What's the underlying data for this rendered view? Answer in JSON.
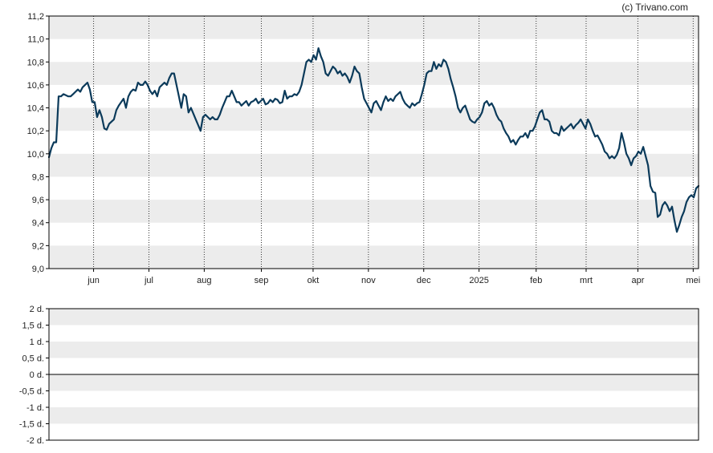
{
  "credit": "(c) Trivano.com",
  "chart_data": [
    {
      "type": "line",
      "title": "",
      "xlabel": "",
      "ylabel": "",
      "ylim": [
        9.0,
        11.2
      ],
      "y_ticks": [
        "9,0",
        "9,2",
        "9,4",
        "9,6",
        "9,8",
        "10,0",
        "10,2",
        "10,4",
        "10,6",
        "10,8",
        "11,0",
        "11,2"
      ],
      "x_ticks": [
        "jun",
        "jul",
        "aug",
        "sep",
        "okt",
        "nov",
        "dec",
        "2025",
        "feb",
        "mrt",
        "apr",
        "mei"
      ],
      "grid": "alternating horizontal bands, dotted vertical lines",
      "line_color": "#0b3a5a",
      "series": [
        {
          "x_start": "2024-05-06",
          "x_end": "2025-05-05",
          "values": [
            9.97,
            10.05,
            10.1,
            10.1,
            10.5,
            10.5,
            10.52,
            10.51,
            10.5,
            10.5,
            10.52,
            10.54,
            10.56,
            10.54,
            10.58,
            10.6,
            10.62,
            10.56,
            10.45,
            10.45,
            10.32,
            10.38,
            10.32,
            10.22,
            10.21,
            10.26,
            10.28,
            10.3,
            10.38,
            10.42,
            10.45,
            10.48,
            10.4,
            10.5,
            10.54,
            10.56,
            10.55,
            10.62,
            10.6,
            10.6,
            10.63,
            10.6,
            10.55,
            10.52,
            10.55,
            10.5,
            10.58,
            10.6,
            10.62,
            10.6,
            10.66,
            10.7,
            10.7,
            10.6,
            10.5,
            10.4,
            10.52,
            10.5,
            10.36,
            10.4,
            10.35,
            10.3,
            10.25,
            10.2,
            10.32,
            10.34,
            10.32,
            10.3,
            10.32,
            10.3,
            10.3,
            10.34,
            10.4,
            10.45,
            10.5,
            10.5,
            10.55,
            10.5,
            10.45,
            10.45,
            10.42,
            10.44,
            10.46,
            10.42,
            10.45,
            10.46,
            10.48,
            10.44,
            10.46,
            10.48,
            10.43,
            10.44,
            10.47,
            10.45,
            10.48,
            10.47,
            10.44,
            10.45,
            10.55,
            10.48,
            10.5,
            10.5,
            10.52,
            10.51,
            10.54,
            10.6,
            10.7,
            10.8,
            10.82,
            10.8,
            10.86,
            10.82,
            10.92,
            10.85,
            10.8,
            10.7,
            10.68,
            10.72,
            10.76,
            10.74,
            10.7,
            10.72,
            10.68,
            10.7,
            10.67,
            10.62,
            10.68,
            10.76,
            10.72,
            10.7,
            10.58,
            10.48,
            10.44,
            10.4,
            10.36,
            10.44,
            10.46,
            10.42,
            10.38,
            10.45,
            10.5,
            10.46,
            10.48,
            10.46,
            10.5,
            10.52,
            10.54,
            10.48,
            10.44,
            10.42,
            10.4,
            10.44,
            10.42,
            10.44,
            10.45,
            10.52,
            10.6,
            10.7,
            10.72,
            10.72,
            10.8,
            10.74,
            10.78,
            10.76,
            10.82,
            10.8,
            10.74,
            10.65,
            10.58,
            10.5,
            10.4,
            10.36,
            10.4,
            10.42,
            10.36,
            10.3,
            10.28,
            10.27,
            10.3,
            10.32,
            10.36,
            10.44,
            10.46,
            10.42,
            10.44,
            10.4,
            10.34,
            10.3,
            10.28,
            10.22,
            10.18,
            10.15,
            10.1,
            10.12,
            10.08,
            10.12,
            10.15,
            10.15,
            10.18,
            10.14,
            10.2,
            10.2,
            10.24,
            10.3,
            10.36,
            10.38,
            10.3,
            10.3,
            10.28,
            10.2,
            10.18,
            10.18,
            10.16,
            10.24,
            10.2,
            10.22,
            10.24,
            10.26,
            10.22,
            10.25,
            10.27,
            10.3,
            10.26,
            10.22,
            10.3,
            10.26,
            10.2,
            10.15,
            10.16,
            10.12,
            10.08,
            10.02,
            10.0,
            9.96,
            9.98,
            9.96,
            9.99,
            10.05,
            10.18,
            10.1,
            10.0,
            9.96,
            9.9,
            9.96,
            9.98,
            10.02,
            10.0,
            10.06,
            9.98,
            9.9,
            9.72,
            9.67,
            9.66,
            9.45,
            9.47,
            9.55,
            9.58,
            9.55,
            9.5,
            9.54,
            9.42,
            9.32,
            9.38,
            9.45,
            9.5,
            9.58,
            9.62,
            9.64,
            9.62,
            9.7,
            9.72
          ]
        }
      ]
    },
    {
      "type": "line",
      "title": "",
      "ylim": [
        -2,
        2
      ],
      "y_ticks": [
        "2 d.",
        "1,5 d.",
        "1 d.",
        "0,5 d.",
        "0 d.",
        "-0,5 d.",
        "-1 d.",
        "-1,5 d.",
        "-2 d."
      ],
      "grid": "alternating horizontal bands",
      "series": []
    }
  ]
}
